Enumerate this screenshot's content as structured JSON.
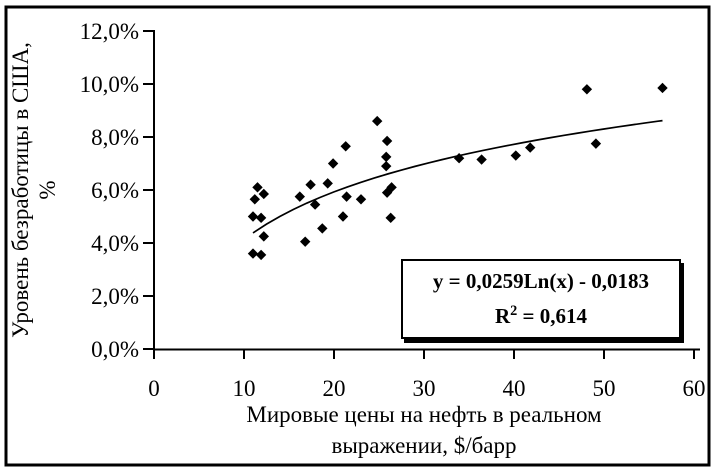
{
  "chart_data": {
    "type": "scatter",
    "title": "",
    "xlabel": "Мировые цены на нефть в реальном выражении, $/барр",
    "xlabel_lines": [
      "Мировые цены на нефть в реальном",
      "выражении, $/барр"
    ],
    "ylabel": "Уровень безработицы в США, %",
    "ylabel_lines": [
      "Уровень безработицы в США,",
      "%"
    ],
    "xlim": [
      0,
      60
    ],
    "ylim_pct": [
      0,
      12
    ],
    "x_ticks": [
      "0",
      "10",
      "20",
      "30",
      "40",
      "50",
      "60"
    ],
    "y_ticks": [
      "0,0%",
      "2,0%",
      "4,0%",
      "6,0%",
      "8,0%",
      "10,0%",
      "12,0%"
    ],
    "grid": false,
    "legend": "none",
    "marker": "diamond",
    "marker_color": "#000000",
    "line_color": "#000000",
    "points": [
      [
        11.0,
        3.6
      ],
      [
        11.9,
        3.55
      ],
      [
        12.2,
        4.25
      ],
      [
        11.0,
        5.0
      ],
      [
        11.9,
        4.95
      ],
      [
        11.2,
        5.65
      ],
      [
        11.5,
        6.1
      ],
      [
        12.2,
        5.85
      ],
      [
        16.2,
        5.75
      ],
      [
        16.8,
        4.05
      ],
      [
        17.4,
        6.2
      ],
      [
        17.9,
        5.45
      ],
      [
        18.7,
        4.55
      ],
      [
        19.3,
        6.25
      ],
      [
        19.9,
        7.0
      ],
      [
        21.0,
        5.0
      ],
      [
        21.3,
        7.65
      ],
      [
        21.4,
        5.75
      ],
      [
        23.0,
        5.65
      ],
      [
        24.8,
        8.6
      ],
      [
        25.8,
        7.25
      ],
      [
        25.8,
        6.9
      ],
      [
        25.9,
        7.85
      ],
      [
        25.9,
        5.9
      ],
      [
        26.3,
        4.95
      ],
      [
        26.4,
        6.1
      ],
      [
        33.9,
        7.2
      ],
      [
        36.4,
        7.15
      ],
      [
        40.2,
        7.3
      ],
      [
        41.8,
        7.6
      ],
      [
        48.1,
        9.8
      ],
      [
        49.1,
        7.75
      ],
      [
        56.5,
        9.85
      ]
    ],
    "trendline": {
      "kind": "logarithmic",
      "a": 0.0259,
      "b": -0.0183,
      "x_start": 11,
      "x_end": 56.5
    },
    "annotation": {
      "equation": "y = 0,0259Ln(x) - 0,0183",
      "r2_base": "R",
      "r2_exponent": "2",
      "r2_value": " = 0,614"
    }
  }
}
